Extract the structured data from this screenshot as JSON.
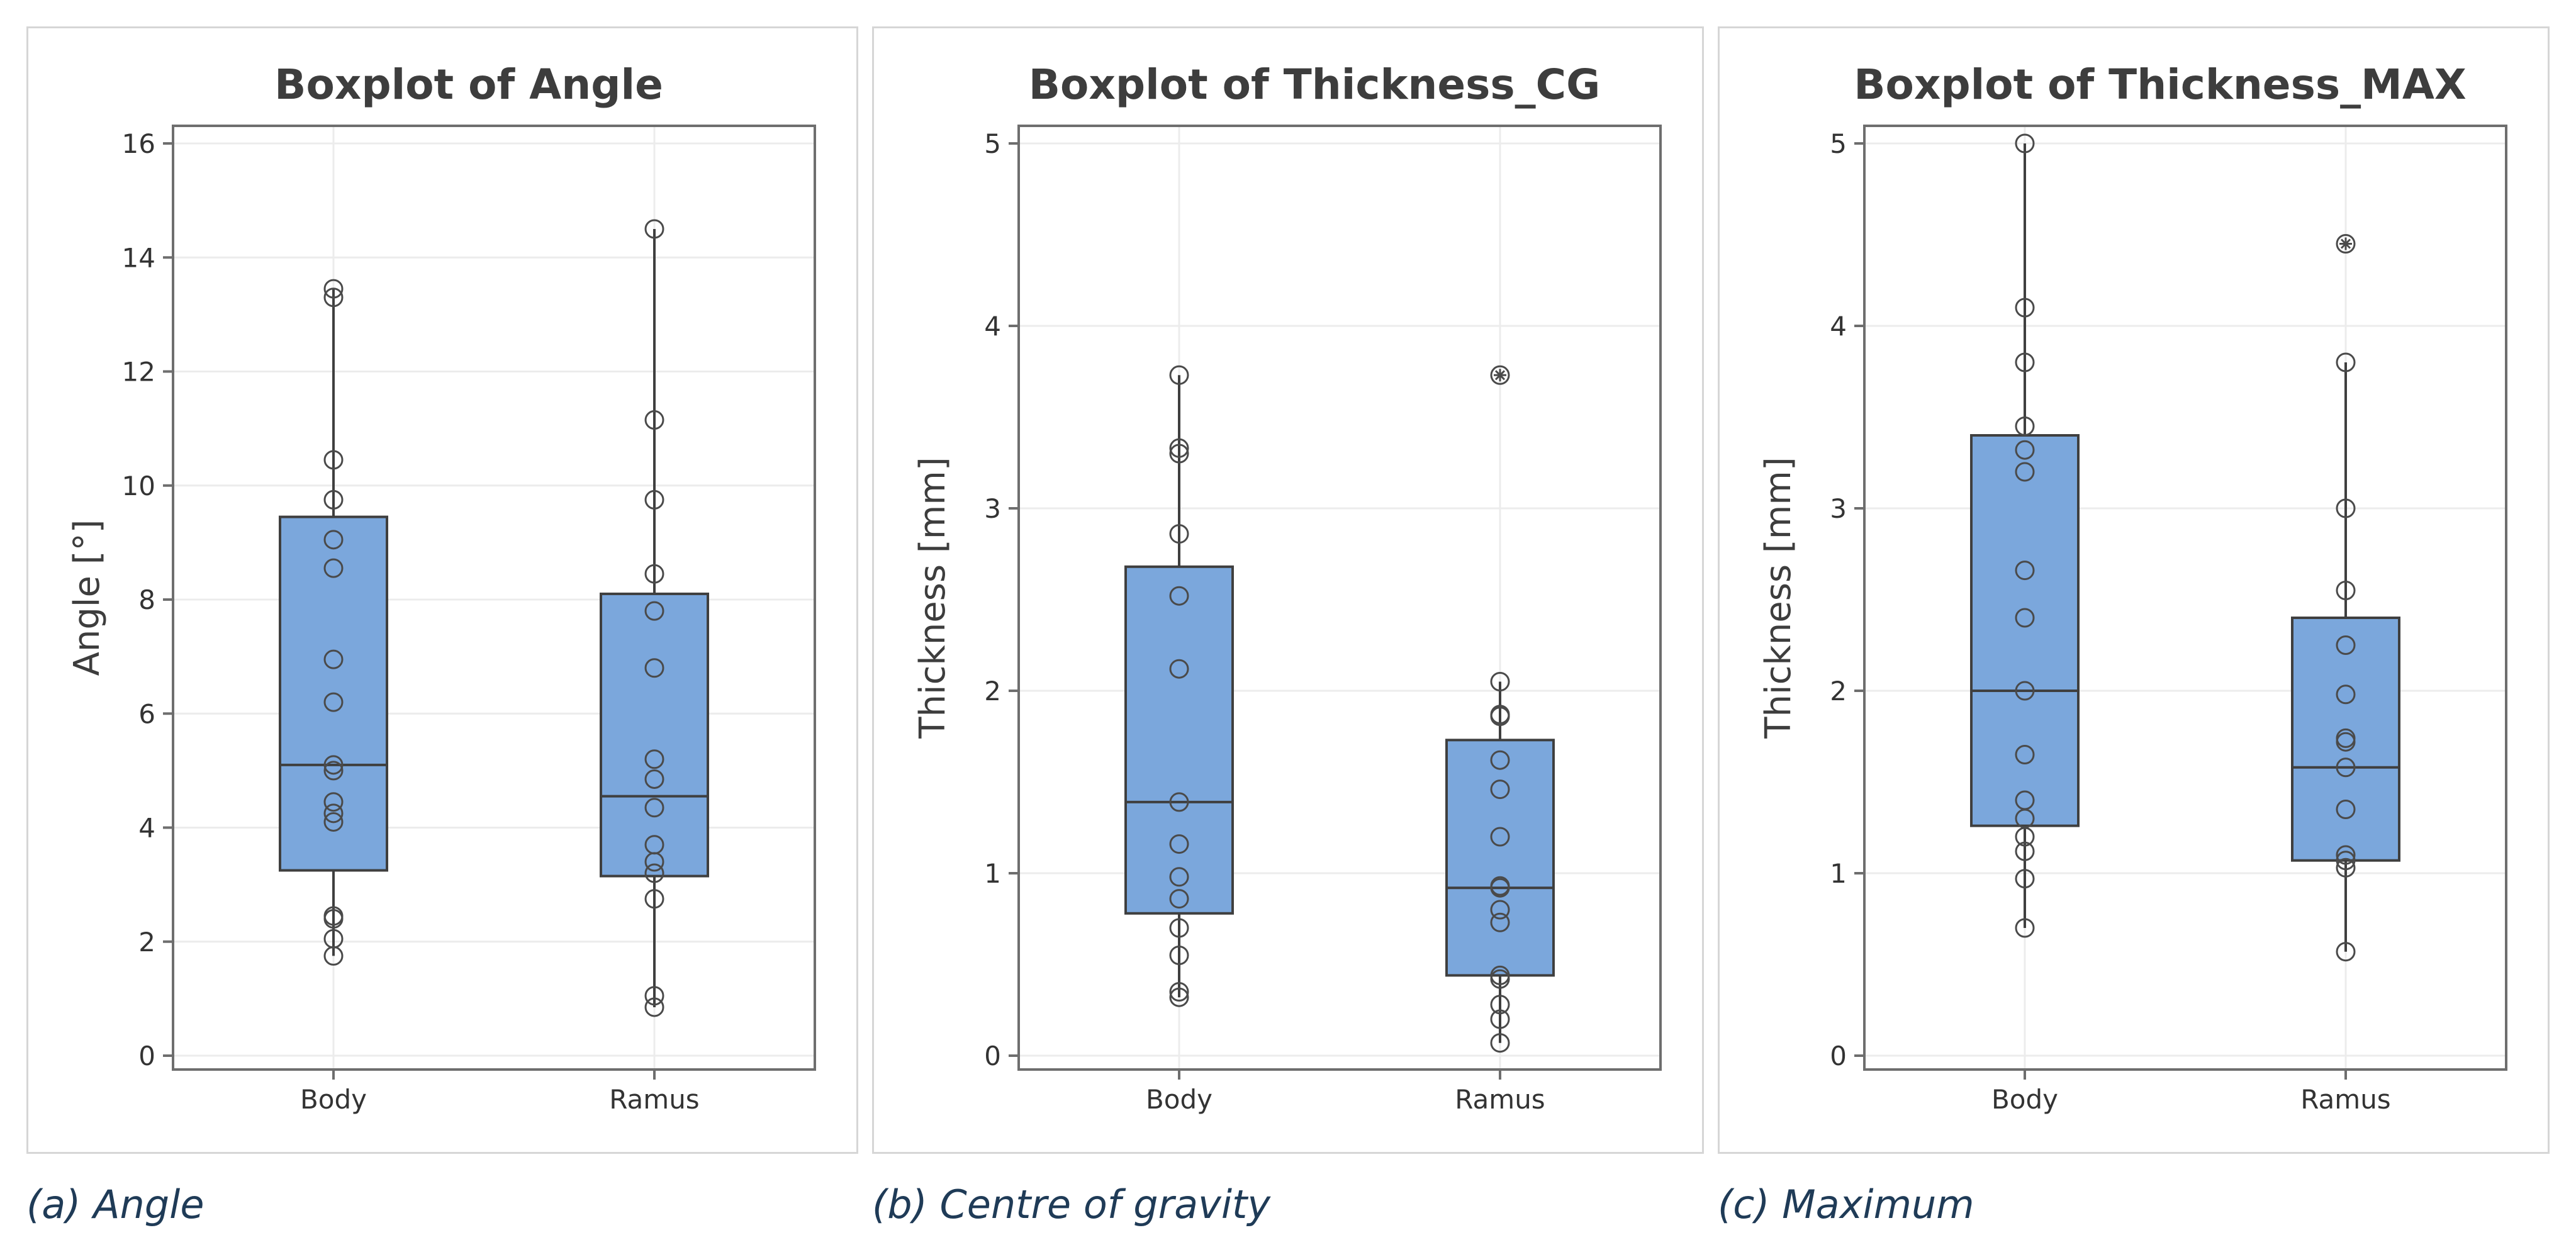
{
  "colors": {
    "box_fill": "#7ba7dc",
    "box_stroke": "#3f3f3f",
    "point_stroke": "#4a4a4a",
    "grid": "#ececec",
    "frame": "#6e6e6e",
    "caption": "#1f3b57"
  },
  "captions": [
    "(a) Angle",
    "(b) Centre of gravity",
    "(c) Maximum"
  ],
  "chart_data": [
    {
      "type": "boxplot",
      "title": "Boxplot of Angle",
      "xlabel": "",
      "ylabel": "Angle [°]",
      "ylim": [
        0,
        16
      ],
      "yticks": [
        0,
        2,
        4,
        6,
        8,
        10,
        12,
        14,
        16
      ],
      "grid": true,
      "categories": [
        "Body",
        "Ramus"
      ],
      "boxes": [
        {
          "category": "Body",
          "min": 1.75,
          "q1": 3.25,
          "median": 5.1,
          "q3": 9.45,
          "max": 13.45,
          "outliers": [],
          "points": [
            1.75,
            2.05,
            2.4,
            2.45,
            4.1,
            4.25,
            4.45,
            5.0,
            5.1,
            6.2,
            6.95,
            8.55,
            9.05,
            9.75,
            10.45,
            13.3,
            13.45
          ]
        },
        {
          "category": "Ramus",
          "min": 0.85,
          "q1": 3.15,
          "median": 4.55,
          "q3": 8.1,
          "max": 14.5,
          "outliers": [],
          "points": [
            0.85,
            1.05,
            2.75,
            3.2,
            3.4,
            3.7,
            4.35,
            4.85,
            5.2,
            6.8,
            7.8,
            8.45,
            9.75,
            11.15,
            14.5
          ]
        }
      ]
    },
    {
      "type": "boxplot",
      "title": "Boxplot of Thickness_CG",
      "xlabel": "",
      "ylabel": "Thickness [mm]",
      "ylim": [
        0,
        5
      ],
      "yticks": [
        0,
        1,
        2,
        3,
        4,
        5
      ],
      "grid": true,
      "categories": [
        "Body",
        "Ramus"
      ],
      "boxes": [
        {
          "category": "Body",
          "min": 0.32,
          "q1": 0.78,
          "median": 1.39,
          "q3": 2.68,
          "max": 3.73,
          "outliers": [],
          "points": [
            0.32,
            0.35,
            0.55,
            0.7,
            0.86,
            0.98,
            1.16,
            1.39,
            2.12,
            2.52,
            2.86,
            3.3,
            3.33,
            3.73
          ]
        },
        {
          "category": "Ramus",
          "min": 0.07,
          "q1": 0.44,
          "median": 0.92,
          "q3": 1.73,
          "max": 2.05,
          "outliers": [
            3.73
          ],
          "points": [
            0.07,
            0.2,
            0.28,
            0.42,
            0.44,
            0.73,
            0.8,
            0.92,
            0.93,
            1.2,
            1.46,
            1.62,
            1.86,
            1.87,
            2.05
          ]
        }
      ]
    },
    {
      "type": "boxplot",
      "title": "Boxplot of Thickness_MAX",
      "xlabel": "",
      "ylabel": "Thickness [mm]",
      "ylim": [
        0,
        5
      ],
      "yticks": [
        0,
        1,
        2,
        3,
        4,
        5
      ],
      "grid": true,
      "categories": [
        "Body",
        "Ramus"
      ],
      "boxes": [
        {
          "category": "Body",
          "min": 0.7,
          "q1": 1.26,
          "median": 2.0,
          "q3": 3.4,
          "max": 5.0,
          "outliers": [],
          "points": [
            0.7,
            0.97,
            1.12,
            1.2,
            1.3,
            1.4,
            1.65,
            2.0,
            2.4,
            2.66,
            3.2,
            3.32,
            3.45,
            3.8,
            4.1,
            5.0
          ]
        },
        {
          "category": "Ramus",
          "min": 0.57,
          "q1": 1.07,
          "median": 1.58,
          "q3": 2.4,
          "max": 3.8,
          "outliers": [
            4.45
          ],
          "points": [
            0.57,
            1.03,
            1.07,
            1.1,
            1.35,
            1.58,
            1.72,
            1.74,
            1.98,
            2.25,
            2.55,
            3.0,
            3.8
          ]
        }
      ]
    }
  ]
}
